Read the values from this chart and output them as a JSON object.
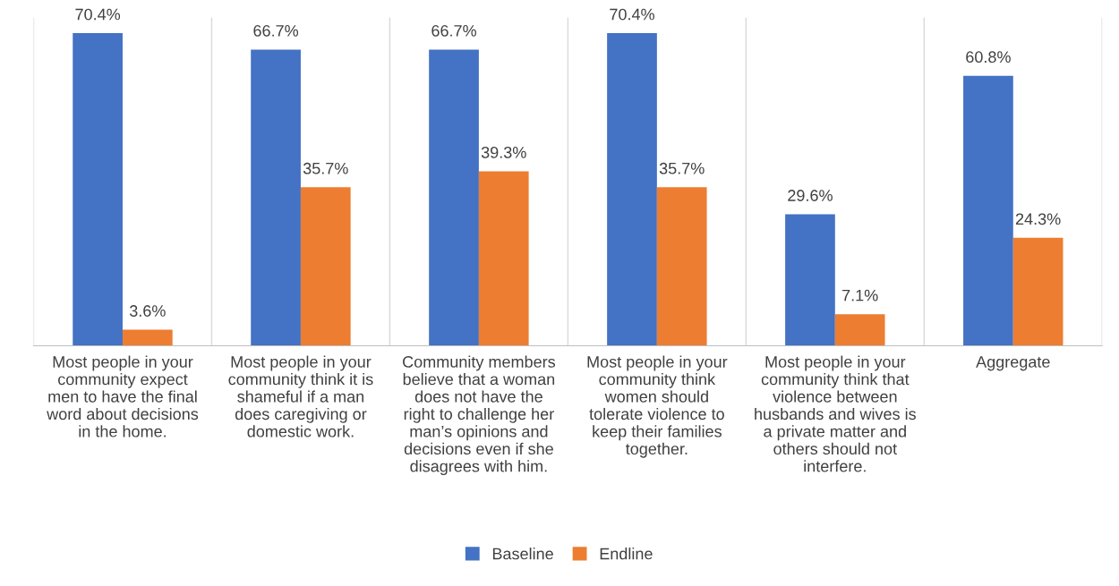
{
  "chart_data": {
    "type": "bar",
    "categories": [
      "Most people in your\ncommunity expect\nmen to have the final\nword about decisions\nin the home.",
      "Most people in your\ncommunity think it is\nshameful if a man\ndoes caregiving or\ndomestic work.",
      "Community members\nbelieve that a woman\ndoes not have the\nright to challenge her\nman’s opinions and\ndecisions even if she\ndisagrees with him.",
      "Most people in your\ncommunity think\nwomen should\ntolerate violence to\nkeep their families\ntogether.",
      "Most people in your\ncommunity think that\nviolence between\nhusbands and wives is\na private matter and\nothers should not\ninterfere.",
      "Aggregate"
    ],
    "series": [
      {
        "name": "Baseline",
        "color": "#4472c4",
        "values": [
          70.4,
          66.7,
          66.7,
          70.4,
          29.6,
          60.8
        ],
        "value_labels": [
          "70.4%",
          "66.7%",
          "66.7%",
          "70.4%",
          "29.6%",
          "60.8%"
        ]
      },
      {
        "name": "Endline",
        "color": "#ed7d31",
        "values": [
          3.6,
          35.7,
          39.3,
          35.7,
          7.1,
          24.3
        ],
        "value_labels": [
          "3.6%",
          "35.7%",
          "39.3%",
          "35.7%",
          "7.1%",
          "24.3%"
        ]
      }
    ],
    "grid": "x",
    "legend": "bottom",
    "tick_labels": "x"
  }
}
